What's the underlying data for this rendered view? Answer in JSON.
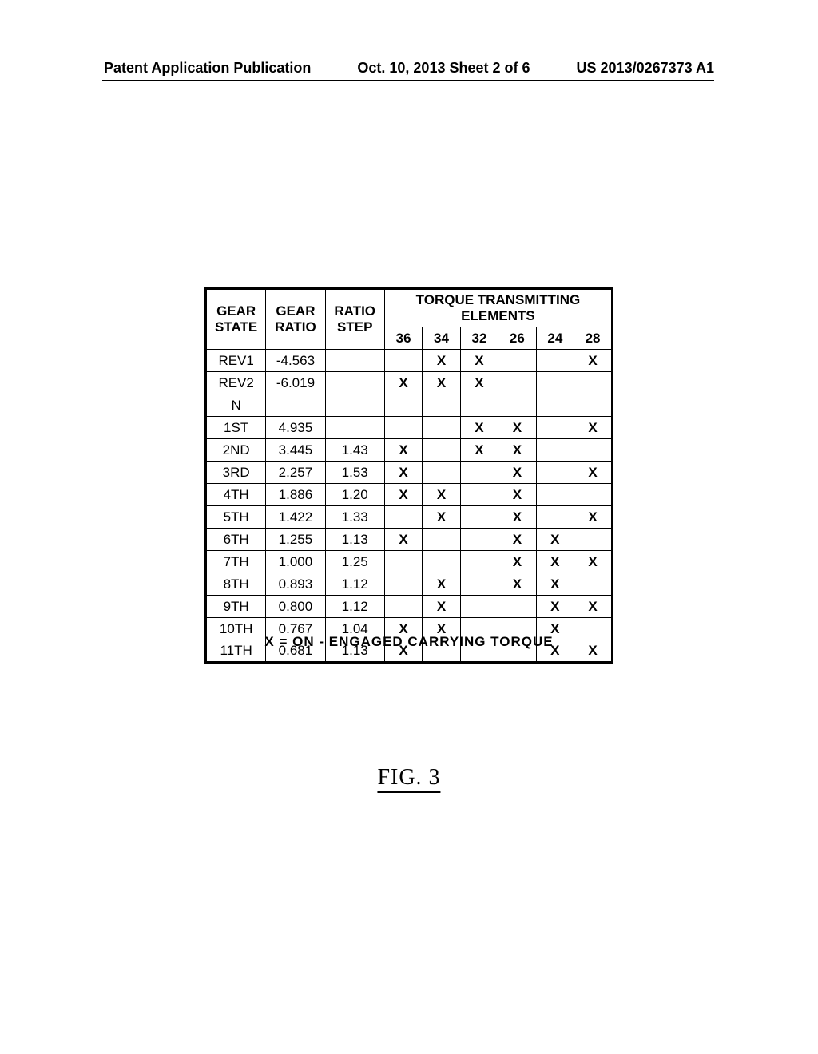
{
  "header": {
    "left": "Patent Application Publication",
    "center": "Oct. 10, 2013  Sheet 2 of 6",
    "right": "US 2013/0267373 A1"
  },
  "table": {
    "mainHeaders": {
      "gearState1": "GEAR",
      "gearState2": "STATE",
      "gearRatio1": "GEAR",
      "gearRatio2": "RATIO",
      "ratioStep1": "RATIO",
      "ratioStep2": "STEP",
      "torqueSpan": "TORQUE TRANSMITTING ELEMENTS"
    },
    "elementCols": [
      "36",
      "34",
      "32",
      "26",
      "24",
      "28"
    ],
    "rows": [
      {
        "state": "REV1",
        "ratio": "-4.563",
        "step": "",
        "elems": [
          "",
          "X",
          "X",
          "",
          "",
          "X"
        ]
      },
      {
        "state": "REV2",
        "ratio": "-6.019",
        "step": "",
        "elems": [
          "X",
          "X",
          "X",
          "",
          "",
          ""
        ]
      },
      {
        "state": "N",
        "ratio": "",
        "step": "",
        "elems": [
          "",
          "",
          "",
          "",
          "",
          ""
        ]
      },
      {
        "state": "1ST",
        "ratio": "4.935",
        "step": "",
        "elems": [
          "",
          "",
          "X",
          "X",
          "",
          "X"
        ]
      },
      {
        "state": "2ND",
        "ratio": "3.445",
        "step": "1.43",
        "elems": [
          "X",
          "",
          "X",
          "X",
          "",
          ""
        ]
      },
      {
        "state": "3RD",
        "ratio": "2.257",
        "step": "1.53",
        "elems": [
          "X",
          "",
          "",
          "X",
          "",
          "X"
        ]
      },
      {
        "state": "4TH",
        "ratio": "1.886",
        "step": "1.20",
        "elems": [
          "X",
          "X",
          "",
          "X",
          "",
          ""
        ]
      },
      {
        "state": "5TH",
        "ratio": "1.422",
        "step": "1.33",
        "elems": [
          "",
          "X",
          "",
          "X",
          "",
          "X"
        ]
      },
      {
        "state": "6TH",
        "ratio": "1.255",
        "step": "1.13",
        "elems": [
          "X",
          "",
          "",
          "X",
          "X",
          ""
        ]
      },
      {
        "state": "7TH",
        "ratio": "1.000",
        "step": "1.25",
        "elems": [
          "",
          "",
          "",
          "X",
          "X",
          "X"
        ]
      },
      {
        "state": "8TH",
        "ratio": "0.893",
        "step": "1.12",
        "elems": [
          "",
          "X",
          "",
          "X",
          "X",
          ""
        ]
      },
      {
        "state": "9TH",
        "ratio": "0.800",
        "step": "1.12",
        "elems": [
          "",
          "X",
          "",
          "",
          "X",
          "X"
        ]
      },
      {
        "state": "10TH",
        "ratio": "0.767",
        "step": "1.04",
        "elems": [
          "X",
          "X",
          "",
          "",
          "X",
          ""
        ]
      },
      {
        "state": "11TH",
        "ratio": "0.681",
        "step": "1.13",
        "elems": [
          "X",
          "",
          "",
          "",
          "X",
          "X"
        ]
      }
    ]
  },
  "legend": "X = ON  -  ENGAGED  CARRYING  TORQUE",
  "figureLabel": "FIG.  3",
  "styling": {
    "background_color": "#ffffff",
    "border_color": "#000000",
    "font_family": "Arial",
    "header_fontsize": 18,
    "table_fontsize": 17,
    "figure_fontsize": 28
  }
}
